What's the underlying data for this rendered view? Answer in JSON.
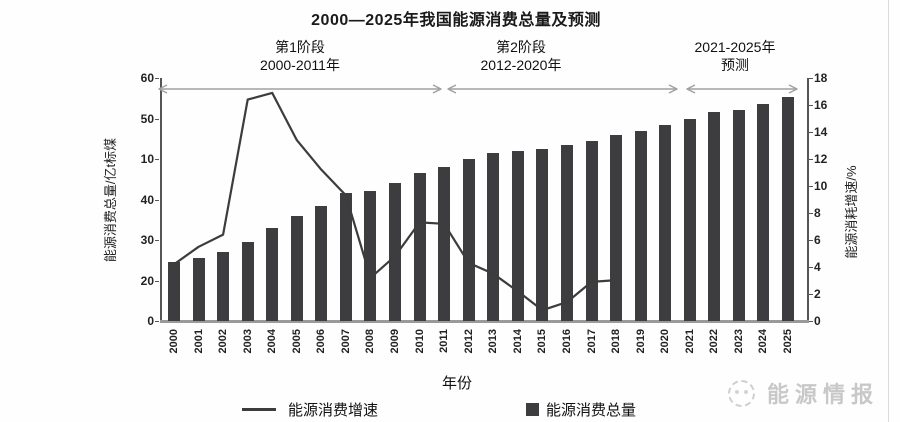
{
  "title": "2000—2025年我国能源消费总量及预测",
  "stages": [
    {
      "line1": "第1阶段",
      "line2": "2000-2011年"
    },
    {
      "line1": "第2阶段",
      "line2": "2012-2020年"
    },
    {
      "line1": "2021-2025年",
      "line2": "预测"
    }
  ],
  "axes": {
    "left": {
      "label": "能源消费总量/亿t标煤",
      "tick_labels": [
        "60",
        "50",
        "10",
        "40",
        "30",
        "20",
        "0"
      ]
    },
    "right": {
      "label": "能源消耗增速/%",
      "tick_labels": [
        "18",
        "16",
        "14",
        "12",
        "10",
        "8",
        "6",
        "4",
        "2",
        "0"
      ]
    },
    "x": {
      "label": "年份"
    }
  },
  "legend": [
    {
      "marker": "line",
      "label": "能源消费增速"
    },
    {
      "marker": "square",
      "label": "能源消费总量"
    }
  ],
  "watermark": {
    "text": "能源情报",
    "icon": "dotted-circle-logo"
  },
  "colors": {
    "bar": "#3d3d3f",
    "line": "#3c3c3c",
    "axis": "#555555",
    "bottom_axis": "#9a9a9a",
    "stage_arrow": "#a0a0a0",
    "watermark": "#c8c8c8"
  },
  "chart_data": {
    "type": "bar+line",
    "title": "2000—2025年我国能源消费总量及预测",
    "xlabel": "年份",
    "categories": [
      "2000",
      "2001",
      "2002",
      "2003",
      "2004",
      "2005",
      "2006",
      "2007",
      "2008",
      "2009",
      "2010",
      "2011",
      "2012",
      "2013",
      "2014",
      "2015",
      "2016",
      "2017",
      "2018",
      "2019",
      "2020",
      "2021",
      "2022",
      "2023",
      "2024",
      "2025"
    ],
    "series": [
      {
        "name": "能源消费总量",
        "type": "bar",
        "axis": "left",
        "unit": "亿t标煤",
        "values": [
          14.5,
          15.5,
          17,
          19.5,
          23,
          26,
          28.5,
          31.5,
          32,
          34,
          36.5,
          38,
          40,
          41.5,
          42,
          42.5,
          43.5,
          44.5,
          46,
          47,
          48.5,
          50,
          51.5,
          52,
          53.5,
          55.3
        ]
      },
      {
        "name": "能源消费增速",
        "type": "line",
        "axis": "right",
        "unit": "%",
        "values": [
          4.2,
          5.5,
          6.4,
          16.4,
          16.9,
          13.4,
          11.2,
          9.3,
          3.2,
          4.8,
          7.3,
          7.2,
          4.3,
          3.5,
          2.2,
          0.8,
          1.4,
          2.9,
          null,
          null,
          null,
          null,
          null,
          null,
          null,
          null
        ],
        "end_stub": {
          "x_year_offset": 17.8,
          "value": 3.0
        }
      }
    ],
    "left_axis_range": [
      0,
      60
    ],
    "right_axis_range": [
      0,
      18
    ],
    "left_axis_tick_labels_as_printed": [
      "60",
      "50",
      "10",
      "40",
      "30",
      "20",
      "0"
    ],
    "grid": false,
    "legend_position": "bottom",
    "annotations": [
      "第1阶段 2000-2011年",
      "第2阶段 2012-2020年",
      "2021-2025年 预测"
    ]
  }
}
